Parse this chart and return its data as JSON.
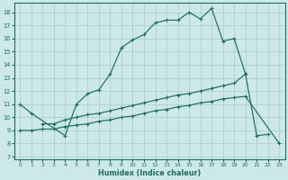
{
  "xlabel": "Humidex (Indice chaleur)",
  "bg_color": "#cce8e8",
  "line_color": "#1a6e5e",
  "grid_color": "#aacccc",
  "xlim": [
    -0.5,
    23.5
  ],
  "ylim": [
    6.8,
    18.7
  ],
  "yticks": [
    7,
    8,
    9,
    10,
    11,
    12,
    13,
    14,
    15,
    16,
    17,
    18
  ],
  "xticks": [
    0,
    1,
    2,
    3,
    4,
    5,
    6,
    7,
    8,
    9,
    10,
    11,
    12,
    13,
    14,
    15,
    16,
    17,
    18,
    19,
    20,
    21,
    22,
    23
  ],
  "l1x": [
    0,
    1,
    4,
    5,
    6,
    7,
    8,
    9,
    10,
    11,
    12,
    13,
    14,
    15,
    16,
    17,
    18,
    19,
    20
  ],
  "l1y": [
    11.0,
    10.3,
    8.6,
    11.0,
    11.8,
    12.1,
    13.3,
    15.3,
    15.9,
    16.3,
    17.2,
    17.4,
    17.4,
    18.0,
    17.5,
    18.3,
    15.8,
    16.0,
    13.3
  ],
  "l2x": [
    2,
    3,
    4,
    5,
    6,
    7,
    8,
    9,
    10,
    11,
    12,
    13,
    14,
    15,
    16,
    17,
    18,
    19,
    20,
    21,
    22
  ],
  "l2y": [
    9.5,
    9.5,
    9.8,
    10.0,
    10.2,
    10.3,
    10.5,
    10.7,
    10.9,
    11.1,
    11.3,
    11.5,
    11.7,
    11.8,
    12.0,
    12.2,
    12.4,
    12.6,
    13.3,
    8.6,
    8.7
  ],
  "l3x": [
    0,
    1,
    2,
    3,
    4,
    5,
    6,
    7,
    8,
    9,
    10,
    11,
    12,
    13,
    14,
    15,
    16,
    17,
    18,
    19,
    20,
    23
  ],
  "l3y": [
    9.0,
    9.0,
    9.1,
    9.1,
    9.3,
    9.4,
    9.5,
    9.7,
    9.8,
    10.0,
    10.1,
    10.3,
    10.5,
    10.6,
    10.8,
    10.9,
    11.1,
    11.2,
    11.4,
    11.5,
    11.6,
    8.0
  ]
}
